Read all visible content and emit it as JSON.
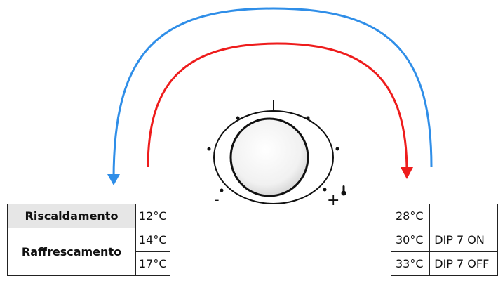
{
  "colors": {
    "blue_arrow": "#2f8ee8",
    "red_arrow": "#ee1c1c",
    "line": "#111111",
    "header_fill": "#e6e6e6"
  },
  "icons": {
    "thermometer": "thermometer-icon",
    "knob": "thermostat-knob"
  },
  "knob": {
    "minus": "-",
    "plus": "+",
    "mark": "|"
  },
  "left_table": {
    "heating": "Riscaldamento",
    "heating_temp": "12°C",
    "cooling": "Raffrescamento",
    "cooling_temps": [
      "14°C",
      "17°C"
    ]
  },
  "right_table": {
    "rows": [
      {
        "temp": "28°C",
        "dip": ""
      },
      {
        "temp": "30°C",
        "dip": "DIP 7 ON"
      },
      {
        "temp": "33°C",
        "dip": "DIP 7 OFF"
      }
    ]
  }
}
